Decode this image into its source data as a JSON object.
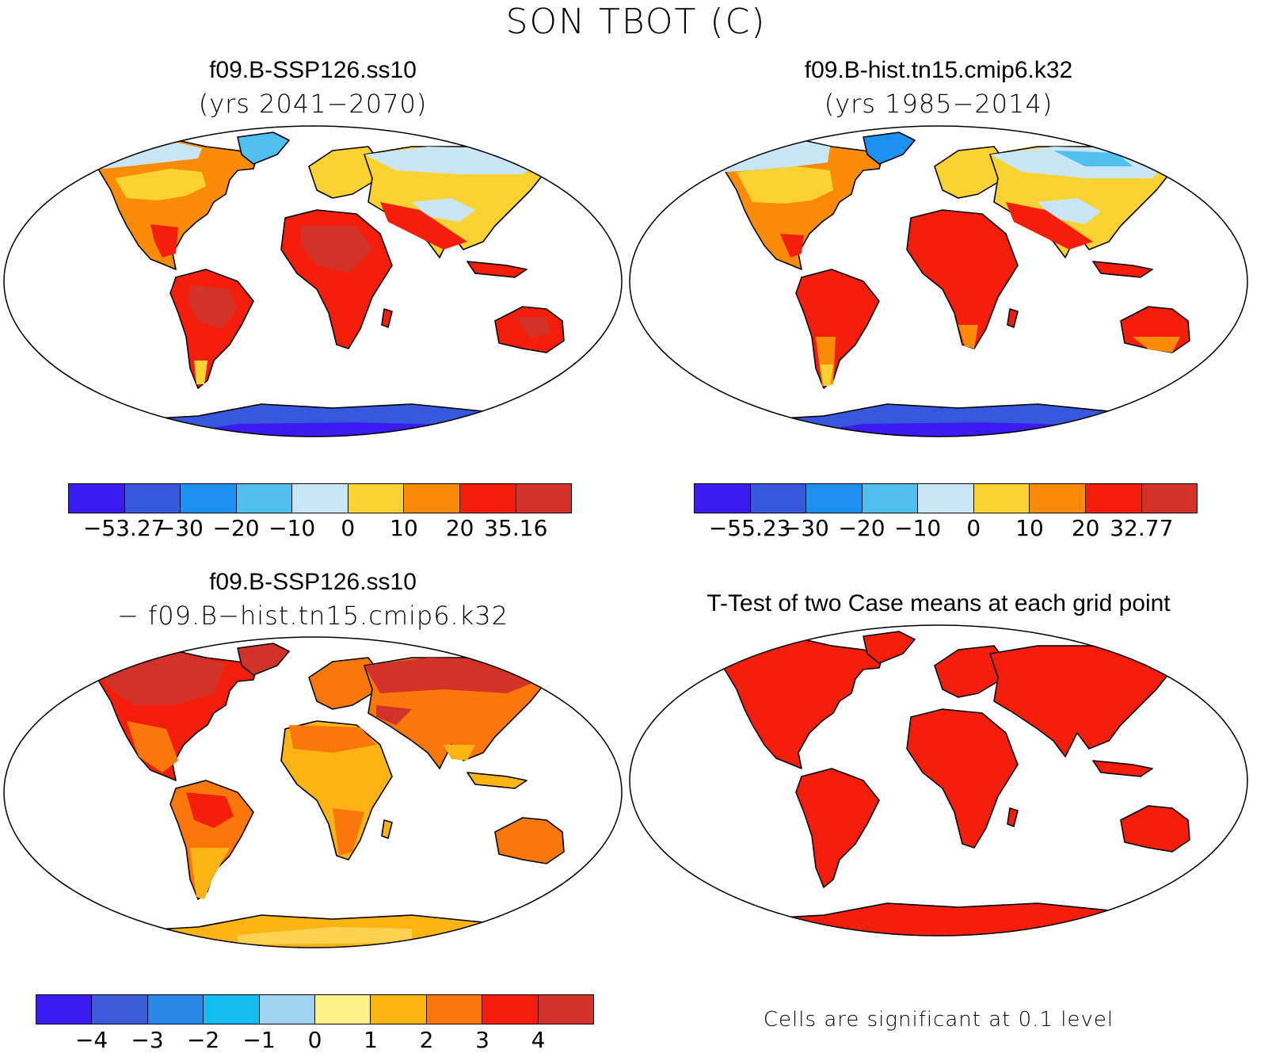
{
  "main_title": "SON TBOT (C)",
  "panels": [
    {
      "title": "f09.B-SSP126.ss10",
      "subtitle": "(yrs 2041−2070)",
      "colorbar": {
        "colors": [
          "#3b1cf0",
          "#3758dc",
          "#1e90f0",
          "#50c0f0",
          "#c8e6f6",
          "#fad232",
          "#fa8c0a",
          "#f51e0a",
          "#d23228"
        ],
        "labels": [
          "−53.27",
          "−30",
          "−20",
          "−10",
          "0",
          "10",
          "20",
          "35.16"
        ]
      }
    },
    {
      "title": "f09.B-hist.tn15.cmip6.k32",
      "subtitle": "(yrs 1985−2014)",
      "colorbar": {
        "colors": [
          "#3b1cf0",
          "#3758dc",
          "#1e90f0",
          "#50c0f0",
          "#c8e6f6",
          "#fad232",
          "#fa8c0a",
          "#f51e0a",
          "#d23228"
        ],
        "labels": [
          "−55.23",
          "−30",
          "−20",
          "−10",
          "0",
          "10",
          "20",
          "32.77"
        ]
      }
    },
    {
      "title": "f09.B-SSP126.ss10",
      "subtitle": "− f09.B−hist.tn15.cmip6.k32",
      "colorbar": {
        "colors": [
          "#3b1cf0",
          "#3a5ad8",
          "#2888e8",
          "#14bef0",
          "#a0d2f0",
          "#fff08c",
          "#fab414",
          "#fa780a",
          "#f51e0a",
          "#d23228"
        ],
        "labels": [
          "−4",
          "−3",
          "−2",
          "−1",
          "0",
          "1",
          "2",
          "3",
          "4"
        ]
      }
    },
    {
      "title": "T-Test of two Case means at each grid point",
      "note": "Cells are significant at 0.1 level"
    }
  ]
}
